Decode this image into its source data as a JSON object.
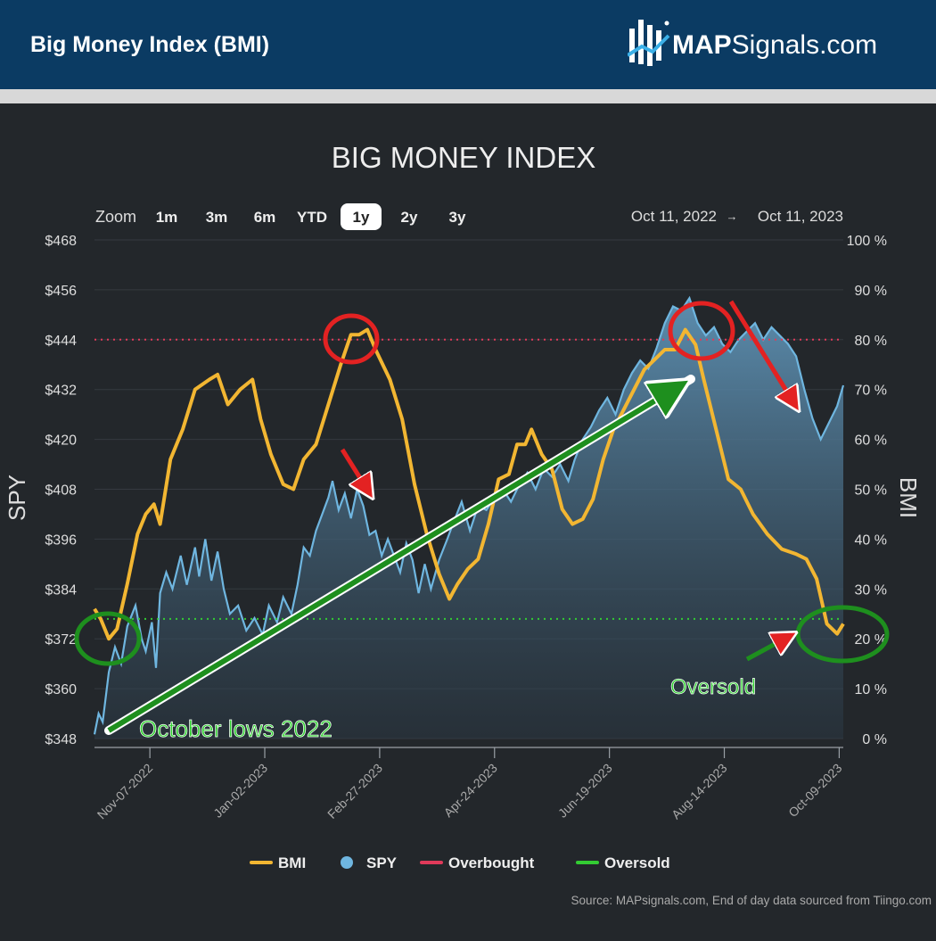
{
  "header": {
    "title": "Big Money Index (BMI)",
    "logo_text_bold": "MAP",
    "logo_text_rest": "Signals.com"
  },
  "toolbar": {
    "zoom_label": "Zoom",
    "zoom_options": [
      "1m",
      "3m",
      "6m",
      "YTD",
      "1y",
      "2y",
      "3y"
    ],
    "selected_zoom": "1y",
    "range_start": "Oct 11, 2022",
    "range_arrow": "→",
    "range_end": "Oct 11, 2023"
  },
  "colors": {
    "bmi": "#f2b632",
    "spy": "#6fb6e0",
    "overbought": "#e03a5a",
    "oversold": "#33cc33",
    "annotation_red": "#e32222",
    "annotation_green": "#1e8f1e"
  },
  "annotations": {
    "october_lows": "October lows 2022",
    "oversold": "Oversold"
  },
  "source": "Source: MAPsignals.com, End of day data sourced from Tiingo.com",
  "chart_data": {
    "type": "line",
    "title": "BIG MONEY INDEX",
    "y_left_label": "SPY",
    "y_right_label": "BMI",
    "y_left_range": [
      348,
      468
    ],
    "y_left_ticks": [
      "$348",
      "$360",
      "$372",
      "$384",
      "$396",
      "$408",
      "$420",
      "$432",
      "$444",
      "$456",
      "$468"
    ],
    "y_right_range": [
      0,
      100
    ],
    "y_right_ticks": [
      "0 %",
      "10 %",
      "20 %",
      "30 %",
      "40 %",
      "50 %",
      "60 %",
      "70 %",
      "80 %",
      "90 %",
      "100 %"
    ],
    "x_range": [
      "2022-10-11",
      "2023-10-11"
    ],
    "x_ticks": [
      "Nov-07-2022",
      "Jan-02-2023",
      "Feb-27-2023",
      "Apr-24-2023",
      "Jun-19-2023",
      "Aug-14-2023",
      "Oct-09-2023"
    ],
    "legend_position": "bottom",
    "overbought_level": 80,
    "oversold_level": 24,
    "series": [
      {
        "name": "BMI",
        "axis": "right",
        "points": [
          [
            "2022-10-11",
            26
          ],
          [
            "2022-10-14",
            24
          ],
          [
            "2022-10-18",
            20
          ],
          [
            "2022-10-22",
            22
          ],
          [
            "2022-10-27",
            31
          ],
          [
            "2022-11-01",
            41
          ],
          [
            "2022-11-05",
            45
          ],
          [
            "2022-11-09",
            47
          ],
          [
            "2022-11-12",
            43
          ],
          [
            "2022-11-17",
            56
          ],
          [
            "2022-11-23",
            62
          ],
          [
            "2022-11-29",
            70
          ],
          [
            "2022-12-06",
            72
          ],
          [
            "2022-12-10",
            73
          ],
          [
            "2022-12-15",
            67
          ],
          [
            "2022-12-21",
            70
          ],
          [
            "2022-12-27",
            72
          ],
          [
            "2022-12-31",
            64
          ],
          [
            "2023-01-05",
            57
          ],
          [
            "2023-01-11",
            51
          ],
          [
            "2023-01-16",
            50
          ],
          [
            "2023-01-21",
            56
          ],
          [
            "2023-01-27",
            59
          ],
          [
            "2023-02-02",
            67
          ],
          [
            "2023-02-08",
            75
          ],
          [
            "2023-02-13",
            81
          ],
          [
            "2023-02-17",
            81
          ],
          [
            "2023-02-21",
            82
          ],
          [
            "2023-02-25",
            78
          ],
          [
            "2023-03-04",
            72
          ],
          [
            "2023-03-10",
            64
          ],
          [
            "2023-03-16",
            51
          ],
          [
            "2023-03-22",
            41
          ],
          [
            "2023-03-28",
            33
          ],
          [
            "2023-04-02",
            28
          ],
          [
            "2023-04-06",
            31
          ],
          [
            "2023-04-11",
            34
          ],
          [
            "2023-04-16",
            36
          ],
          [
            "2023-04-21",
            43
          ],
          [
            "2023-04-26",
            52
          ],
          [
            "2023-05-01",
            53
          ],
          [
            "2023-05-05",
            59
          ],
          [
            "2023-05-09",
            59
          ],
          [
            "2023-05-12",
            62
          ],
          [
            "2023-05-17",
            57
          ],
          [
            "2023-05-22",
            54
          ],
          [
            "2023-05-27",
            46
          ],
          [
            "2023-06-01",
            43
          ],
          [
            "2023-06-06",
            44
          ],
          [
            "2023-06-11",
            48
          ],
          [
            "2023-06-16",
            56
          ],
          [
            "2023-06-21",
            62
          ],
          [
            "2023-06-26",
            66
          ],
          [
            "2023-07-01",
            70
          ],
          [
            "2023-07-06",
            74
          ],
          [
            "2023-07-11",
            76
          ],
          [
            "2023-07-16",
            78
          ],
          [
            "2023-07-21",
            78
          ],
          [
            "2023-07-26",
            82
          ],
          [
            "2023-07-31",
            79
          ],
          [
            "2023-08-04",
            72
          ],
          [
            "2023-08-10",
            62
          ],
          [
            "2023-08-16",
            52
          ],
          [
            "2023-08-22",
            50
          ],
          [
            "2023-08-28",
            45
          ],
          [
            "2023-09-04",
            41
          ],
          [
            "2023-09-11",
            38
          ],
          [
            "2023-09-18",
            37
          ],
          [
            "2023-09-23",
            36
          ],
          [
            "2023-09-28",
            32
          ],
          [
            "2023-10-03",
            23
          ],
          [
            "2023-10-08",
            21
          ],
          [
            "2023-10-11",
            23
          ]
        ]
      },
      {
        "name": "SPY",
        "axis": "left",
        "points": [
          [
            "2022-10-11",
            349
          ],
          [
            "2022-10-13",
            354
          ],
          [
            "2022-10-15",
            352
          ],
          [
            "2022-10-18",
            364
          ],
          [
            "2022-10-21",
            370
          ],
          [
            "2022-10-24",
            366
          ],
          [
            "2022-10-27",
            375
          ],
          [
            "2022-10-31",
            380
          ],
          [
            "2022-11-03",
            372
          ],
          [
            "2022-11-05",
            369
          ],
          [
            "2022-11-08",
            376
          ],
          [
            "2022-11-10",
            365
          ],
          [
            "2022-11-12",
            383
          ],
          [
            "2022-11-15",
            388
          ],
          [
            "2022-11-18",
            384
          ],
          [
            "2022-11-22",
            392
          ],
          [
            "2022-11-25",
            385
          ],
          [
            "2022-11-29",
            394
          ],
          [
            "2022-12-01",
            387
          ],
          [
            "2022-12-04",
            396
          ],
          [
            "2022-12-07",
            386
          ],
          [
            "2022-12-10",
            393
          ],
          [
            "2022-12-13",
            384
          ],
          [
            "2022-12-16",
            378
          ],
          [
            "2022-12-20",
            380
          ],
          [
            "2022-12-24",
            374
          ],
          [
            "2022-12-28",
            377
          ],
          [
            "2023-01-01",
            373
          ],
          [
            "2023-01-04",
            380
          ],
          [
            "2023-01-08",
            376
          ],
          [
            "2023-01-11",
            382
          ],
          [
            "2023-01-15",
            378
          ],
          [
            "2023-01-18",
            385
          ],
          [
            "2023-01-21",
            394
          ],
          [
            "2023-01-24",
            392
          ],
          [
            "2023-01-27",
            398
          ],
          [
            "2023-01-30",
            402
          ],
          [
            "2023-02-02",
            406
          ],
          [
            "2023-02-04",
            410
          ],
          [
            "2023-02-07",
            403
          ],
          [
            "2023-02-10",
            407
          ],
          [
            "2023-02-13",
            401
          ],
          [
            "2023-02-16",
            408
          ],
          [
            "2023-02-19",
            404
          ],
          [
            "2023-02-22",
            397
          ],
          [
            "2023-02-25",
            398
          ],
          [
            "2023-02-28",
            392
          ],
          [
            "2023-03-03",
            396
          ],
          [
            "2023-03-06",
            392
          ],
          [
            "2023-03-09",
            388
          ],
          [
            "2023-03-12",
            395
          ],
          [
            "2023-03-15",
            391
          ],
          [
            "2023-03-18",
            383
          ],
          [
            "2023-03-21",
            390
          ],
          [
            "2023-03-24",
            384
          ],
          [
            "2023-03-28",
            391
          ],
          [
            "2023-04-01",
            396
          ],
          [
            "2023-04-04",
            400
          ],
          [
            "2023-04-08",
            405
          ],
          [
            "2023-04-12",
            398
          ],
          [
            "2023-04-16",
            404
          ],
          [
            "2023-04-20",
            403
          ],
          [
            "2023-04-24",
            406
          ],
          [
            "2023-04-28",
            408
          ],
          [
            "2023-05-02",
            405
          ],
          [
            "2023-05-06",
            409
          ],
          [
            "2023-05-10",
            412
          ],
          [
            "2023-05-14",
            408
          ],
          [
            "2023-05-18",
            413
          ],
          [
            "2023-05-22",
            411
          ],
          [
            "2023-05-26",
            414
          ],
          [
            "2023-05-30",
            410
          ],
          [
            "2023-06-02",
            415
          ],
          [
            "2023-06-06",
            420
          ],
          [
            "2023-06-10",
            423
          ],
          [
            "2023-06-14",
            427
          ],
          [
            "2023-06-18",
            430
          ],
          [
            "2023-06-22",
            426
          ],
          [
            "2023-06-26",
            432
          ],
          [
            "2023-06-30",
            436
          ],
          [
            "2023-07-04",
            439
          ],
          [
            "2023-07-08",
            437
          ],
          [
            "2023-07-12",
            442
          ],
          [
            "2023-07-16",
            448
          ],
          [
            "2023-07-20",
            452
          ],
          [
            "2023-07-24",
            451
          ],
          [
            "2023-07-28",
            454
          ],
          [
            "2023-08-01",
            448
          ],
          [
            "2023-08-05",
            445
          ],
          [
            "2023-08-09",
            447
          ],
          [
            "2023-08-13",
            443
          ],
          [
            "2023-08-17",
            441
          ],
          [
            "2023-08-21",
            444
          ],
          [
            "2023-08-25",
            446
          ],
          [
            "2023-08-29",
            448
          ],
          [
            "2023-09-02",
            444
          ],
          [
            "2023-09-06",
            447
          ],
          [
            "2023-09-10",
            445
          ],
          [
            "2023-09-14",
            443
          ],
          [
            "2023-09-18",
            440
          ],
          [
            "2023-09-22",
            432
          ],
          [
            "2023-09-26",
            425
          ],
          [
            "2023-09-30",
            420
          ],
          [
            "2023-10-04",
            424
          ],
          [
            "2023-10-08",
            428
          ],
          [
            "2023-10-11",
            433
          ]
        ]
      }
    ]
  }
}
